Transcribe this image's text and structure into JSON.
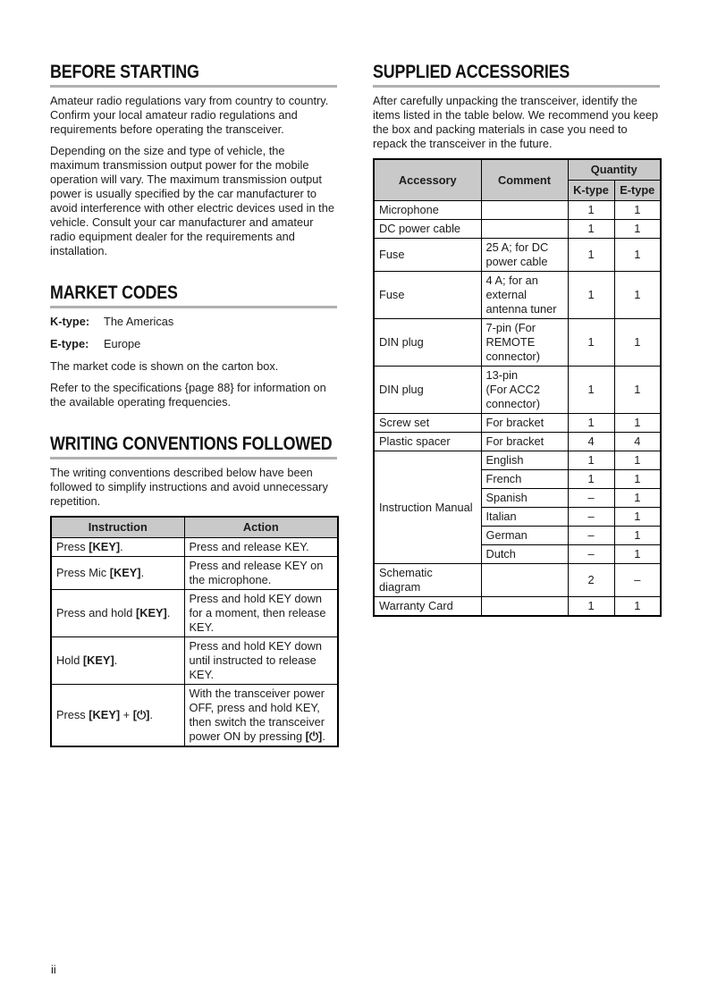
{
  "page_number": "ii",
  "before_starting": {
    "heading": "BEFORE STARTING",
    "para1": "Amateur radio regulations vary from country to country.  Confirm your local amateur radio regulations and requirements before operating the transceiver.",
    "para2": "Depending on the size and type of vehicle, the maximum transmission output power for the mobile operation will vary.  The maximum transmission output power is usually specified by the car manufacturer to avoid interference with other electric devices used in the vehicle.  Consult your car manufacturer and amateur radio equipment dealer for the requirements and installation."
  },
  "market_codes": {
    "heading": "MARKET CODES",
    "k_label": "K-type:",
    "k_value": "The Americas",
    "e_label": "E-type:",
    "e_value": "Europe",
    "note1": "The market code is shown on the carton box.",
    "note2": "Refer to the specifications {page 88} for information on the available operating frequencies."
  },
  "writing_conventions": {
    "heading": "WRITING CONVENTIONS FOLLOWED",
    "intro": "The writing conventions described below have been followed to simplify instructions and avoid unnecessary repetition.",
    "table": {
      "col_instruction": "Instruction",
      "col_action": "Action",
      "rows": [
        {
          "instruction": [
            {
              "t": "Press ",
              "b": false
            },
            {
              "t": "[KEY]",
              "b": true
            },
            {
              "t": ".",
              "b": false
            }
          ],
          "action": [
            {
              "t": "Press and release KEY.",
              "b": false
            }
          ]
        },
        {
          "instruction": [
            {
              "t": "Press Mic ",
              "b": false
            },
            {
              "t": "[KEY]",
              "b": true
            },
            {
              "t": ".",
              "b": false
            }
          ],
          "action": [
            {
              "t": "Press and release KEY on the microphone.",
              "b": false
            }
          ]
        },
        {
          "instruction": [
            {
              "t": "Press and hold ",
              "b": false
            },
            {
              "t": "[KEY]",
              "b": true
            },
            {
              "t": ".",
              "b": false
            }
          ],
          "action": [
            {
              "t": "Press and hold KEY down for a moment, then release KEY.",
              "b": false
            }
          ]
        },
        {
          "instruction": [
            {
              "t": "Hold ",
              "b": false
            },
            {
              "t": "[KEY]",
              "b": true
            },
            {
              "t": ".",
              "b": false
            }
          ],
          "action": [
            {
              "t": "Press and hold KEY down until instructed to release KEY.",
              "b": false
            }
          ]
        },
        {
          "instruction": [
            {
              "t": "Press ",
              "b": false
            },
            {
              "t": "[KEY]",
              "b": true
            },
            {
              "t": " + ",
              "b": false
            },
            {
              "t": "[⏻]",
              "b": true
            },
            {
              "t": ".",
              "b": false
            }
          ],
          "action": [
            {
              "t": "With the transceiver power OFF, press and hold KEY, then switch the transceiver power ON by pressing ",
              "b": false
            },
            {
              "t": "[⏻]",
              "b": true
            },
            {
              "t": ".",
              "b": false
            }
          ]
        }
      ]
    }
  },
  "supplied_accessories": {
    "heading": "SUPPLIED ACCESSORIES",
    "intro": "After carefully unpacking the transceiver, identify the items listed in the table below.  We recommend you keep the box and packing materials in case you need to repack the transceiver in the future.",
    "table": {
      "col_accessory": "Accessory",
      "col_comment": "Comment",
      "col_quantity": "Quantity",
      "col_ktype": "K-type",
      "col_etype": "E-type",
      "rows": [
        {
          "accessory": "Microphone",
          "comment": "",
          "k": "1",
          "e": "1"
        },
        {
          "accessory": "DC power cable",
          "comment": "",
          "k": "1",
          "e": "1"
        },
        {
          "accessory": "Fuse",
          "comment": "25 A; for DC\npower cable",
          "k": "1",
          "e": "1"
        },
        {
          "accessory": "Fuse",
          "comment": "4 A; for an\nexternal\nantenna tuner",
          "k": "1",
          "e": "1"
        },
        {
          "accessory": "DIN plug",
          "comment": "7-pin (For\nREMOTE\nconnector)",
          "k": "1",
          "e": "1"
        },
        {
          "accessory": "DIN plug",
          "comment": "13-pin\n(For ACC2\nconnector)",
          "k": "1",
          "e": "1"
        },
        {
          "accessory": "Screw set",
          "comment": "For bracket",
          "k": "1",
          "e": "1"
        },
        {
          "accessory": "Plastic spacer",
          "comment": "For bracket",
          "k": "4",
          "e": "4"
        },
        {
          "accessory": "Instruction Manual",
          "comment": "English",
          "k": "1",
          "e": "1"
        },
        {
          "accessory": "",
          "comment": "French",
          "k": "1",
          "e": "1"
        },
        {
          "accessory": "",
          "comment": "Spanish",
          "k": "–",
          "e": "1"
        },
        {
          "accessory": "",
          "comment": "Italian",
          "k": "–",
          "e": "1"
        },
        {
          "accessory": "",
          "comment": "German",
          "k": "–",
          "e": "1"
        },
        {
          "accessory": "",
          "comment": "Dutch",
          "k": "–",
          "e": "1"
        },
        {
          "accessory": "Schematic\ndiagram",
          "comment": "",
          "k": "2",
          "e": "–"
        },
        {
          "accessory": "Warranty Card",
          "comment": "",
          "k": "1",
          "e": "1"
        }
      ]
    }
  }
}
